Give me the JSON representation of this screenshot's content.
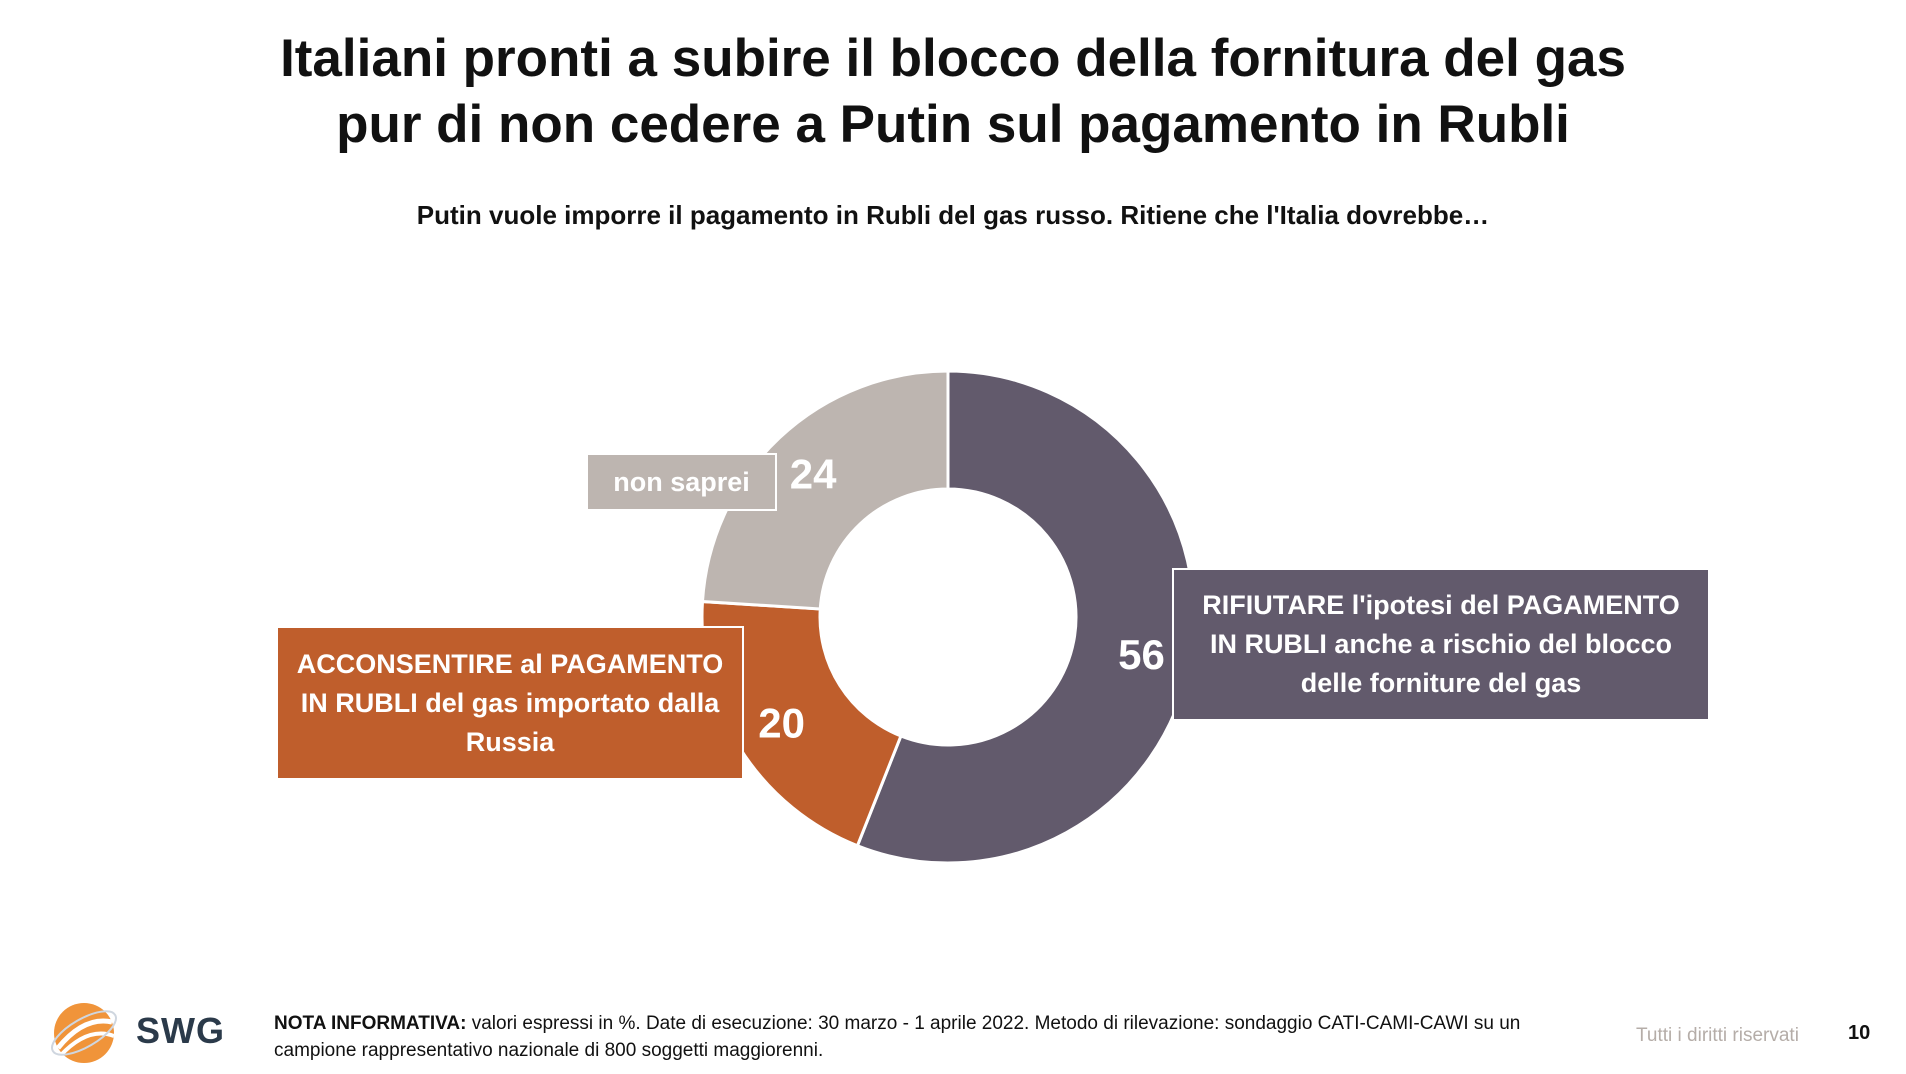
{
  "header": {
    "title_line1": "Italiani pronti a subire il blocco della fornitura del gas",
    "title_line2": "pur di non cedere a Putin sul pagamento in Rubli",
    "question": "Putin vuole imporre il pagamento in Rubli del gas russo. Ritiene che l'Italia dovrebbe…"
  },
  "chart_data": {
    "type": "pie",
    "donut": true,
    "unit": "%",
    "slices": [
      {
        "label": "RIFIUTARE l'ipotesi del PAGAMENTO IN RUBLI anche a rischio del blocco delle forniture del gas",
        "value": 56,
        "value_label": "56",
        "color": "#625a6c"
      },
      {
        "label": "ACCONSENTIRE al PAGAMENTO IN RUBLI del gas importato dalla Russia",
        "value": 20,
        "value_label": "20",
        "color": "#bf5e2c"
      },
      {
        "label": "non saprei",
        "value": 24,
        "value_label": "24",
        "color": "#bdb5b0"
      }
    ]
  },
  "footer": {
    "note_bold": "NOTA INFORMATIVA:",
    "note_text": " valori espressi in %. Date di esecuzione: 30 marzo - 1 aprile 2022. Metodo di rilevazione: sondaggio CATI-CAMI-CAWI su un campione rappresentativo nazionale di 800 soggetti maggiorenni.",
    "rights": "Tutti i diritti riservati",
    "page_number": "10",
    "logo_text": "SWG"
  },
  "colors": {
    "refuse": "#625a6c",
    "accept": "#bf5e2c",
    "unknown": "#bdb5b0",
    "logo_orange": "#f0943a"
  }
}
